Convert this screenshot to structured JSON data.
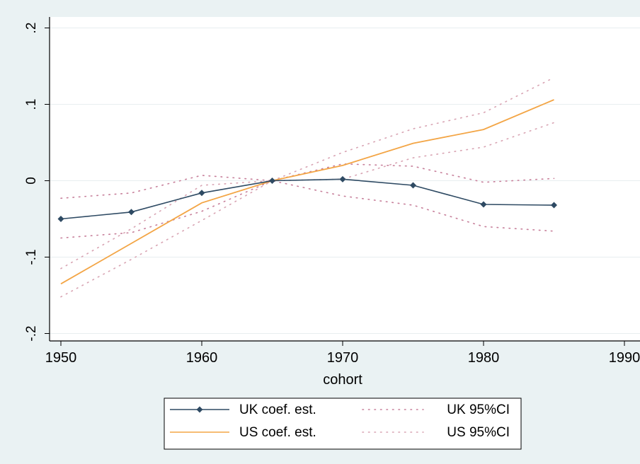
{
  "chart_data": {
    "type": "line",
    "title": "",
    "xlabel": "cohort",
    "ylabel": "",
    "xlim": [
      1950,
      1990
    ],
    "ylim": [
      -0.2,
      0.2
    ],
    "x_ticks": [
      1950,
      1960,
      1970,
      1980,
      1990
    ],
    "x_tick_labels": [
      "1950",
      "1960",
      "1970",
      "1980",
      "1990"
    ],
    "y_ticks": [
      -0.2,
      -0.1,
      0,
      0.1,
      0.2
    ],
    "y_tick_labels": [
      "-.2",
      "-.1",
      "0",
      ".1",
      ".2"
    ],
    "grid": true,
    "legend_position": "bottom",
    "x": [
      1950,
      1955,
      1960,
      1965,
      1970,
      1975,
      1980,
      1985
    ],
    "series": [
      {
        "name": "UK coef. est.",
        "color": "#2e4a63",
        "style": "solid-markers",
        "values": [
          -0.05,
          -0.041,
          -0.016,
          0.0,
          0.002,
          -0.006,
          -0.031,
          -0.032
        ]
      },
      {
        "name": "US coef. est.",
        "color": "#f3a545",
        "style": "solid",
        "values": [
          -0.135,
          -0.082,
          -0.029,
          0.0,
          0.02,
          0.049,
          0.067,
          0.106
        ]
      },
      {
        "name": "UK 95%CI",
        "color": "#c77f9a",
        "style": "dotted",
        "band_lower": [
          -0.075,
          -0.068,
          -0.04,
          0.0,
          -0.02,
          -0.032,
          -0.06,
          -0.066
        ],
        "band_upper": [
          -0.023,
          -0.016,
          0.007,
          0.0,
          0.022,
          0.019,
          -0.002,
          0.003
        ]
      },
      {
        "name": "US 95%CI",
        "color": "#d8a3b2",
        "style": "dotted",
        "band_lower": [
          -0.152,
          -0.103,
          -0.052,
          0.0,
          0.002,
          0.03,
          0.044,
          0.076
        ],
        "band_upper": [
          -0.115,
          -0.063,
          -0.006,
          0.0,
          0.037,
          0.068,
          0.089,
          0.135
        ]
      }
    ],
    "legend": [
      {
        "label": "UK coef. est.",
        "series": 0
      },
      {
        "label": "UK 95%CI",
        "series": 2
      },
      {
        "label": "US coef. est.",
        "series": 1
      },
      {
        "label": "US 95%CI",
        "series": 3
      }
    ]
  }
}
